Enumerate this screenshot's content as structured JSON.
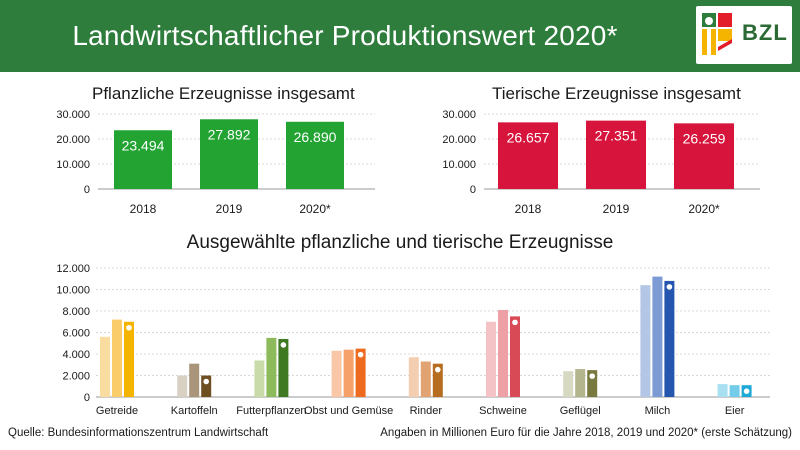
{
  "header": {
    "title": "Landwirtschaftlicher Produktionswert 2020*",
    "logo_text": "BZL"
  },
  "footer": {
    "source": "Quelle: Bundesinformationszentrum Landwirtschaft",
    "note": "Angaben in Millionen Euro für die Jahre 2018, 2019 und 2020* (erste Schätzung)"
  },
  "colors": {
    "header": "#2e7d3c",
    "plant": "#22a332",
    "animal": "#d7143c"
  },
  "chart_data": [
    {
      "type": "bar",
      "title": "Pflanzliche Erzeugnisse insgesamt",
      "categories": [
        "2018",
        "2019",
        "2020*"
      ],
      "values": [
        23494,
        27892,
        26890
      ],
      "value_labels": [
        "23.494",
        "27.892",
        "26.890"
      ],
      "yticks": [
        "0",
        "10.000",
        "20.000",
        "30.000"
      ],
      "ylim": [
        0,
        30000
      ],
      "grid": true,
      "color": "#22a332"
    },
    {
      "type": "bar",
      "title": "Tierische Erzeugnisse insgesamt",
      "categories": [
        "2018",
        "2019",
        "2020*"
      ],
      "values": [
        26657,
        27351,
        26259
      ],
      "value_labels": [
        "26.657",
        "27.351",
        "26.259"
      ],
      "yticks": [
        "0",
        "10.000",
        "20.000",
        "30.000"
      ],
      "ylim": [
        0,
        30000
      ],
      "grid": true,
      "color": "#d7143c"
    },
    {
      "type": "bar",
      "title": "Ausgewählte pflanzliche und tierische Erzeugnisse",
      "categories": [
        "Getreide",
        "Kartoffeln",
        "Futterpflanzen",
        "Obst und Gemüse",
        "Rinder",
        "Schweine",
        "Geflügel",
        "Milch",
        "Eier"
      ],
      "yticks": [
        "0",
        "2.000",
        "4.000",
        "6.000",
        "8.000",
        "10.000",
        "12.000"
      ],
      "ylim": [
        0,
        12000
      ],
      "grid": true,
      "values": [
        [
          5600,
          7200,
          7000
        ],
        [
          2000,
          3100,
          2000
        ],
        [
          3400,
          5500,
          5400
        ],
        [
          4300,
          4400,
          4500
        ],
        [
          3700,
          3300,
          3100
        ],
        [
          7000,
          8100,
          7500
        ],
        [
          2400,
          2600,
          2500
        ],
        [
          10400,
          11200,
          10800
        ],
        [
          1200,
          1100,
          1100
        ]
      ],
      "colors": [
        [
          "#f8dca0",
          "#fbcc6a",
          "#f5b400"
        ],
        [
          "#d9d2c4",
          "#a8957a",
          "#6e4f22"
        ],
        [
          "#c9dba8",
          "#8dba5a",
          "#3f7a23"
        ],
        [
          "#f9c7a8",
          "#f6a06a",
          "#ee6a1e"
        ],
        [
          "#f4ceb0",
          "#e2a372",
          "#b76d20"
        ],
        [
          "#f4c3c6",
          "#eda0a6",
          "#d94a57"
        ],
        [
          "#d7d9c2",
          "#b3b58d",
          "#77793f"
        ],
        [
          "#b3c6e6",
          "#7c9ad4",
          "#2456b0"
        ],
        [
          "#a8e0f2",
          "#73cde9",
          "#1fa9d6"
        ]
      ]
    }
  ]
}
